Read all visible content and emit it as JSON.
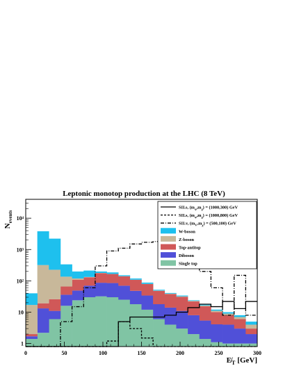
{
  "chart_data": {
    "type": "histogram",
    "title": "Leptonic monotop production at the LHC (8 TeV)",
    "ylabel_main": "N",
    "ylabel_sub": "events",
    "xlabel": "E̸T [GeV]",
    "xlabel_parts": {
      "sym": "E̸",
      "sub": "T",
      "unit": "[GeV]"
    },
    "xlim": [
      0,
      300
    ],
    "ylim": [
      0.8,
      40000
    ],
    "y_scale": "log",
    "x_ticks": [
      0,
      50,
      100,
      150,
      200,
      250,
      300
    ],
    "x_tick_labels": [
      "0",
      "50",
      "100",
      "150",
      "200",
      "250",
      "300"
    ],
    "y_ticks": [
      1,
      10,
      100,
      1000,
      10000
    ],
    "y_tick_labels": [
      "1",
      "10",
      "10²",
      "10³",
      "10⁴"
    ],
    "bin_edges": [
      0,
      15,
      30,
      45,
      60,
      75,
      90,
      105,
      120,
      135,
      150,
      165,
      180,
      195,
      210,
      225,
      240,
      255,
      270,
      285,
      300
    ],
    "stack_order_bottom_to_top": [
      "Single top",
      "Diboson",
      "Top-antitop",
      "Z-boson",
      "W-boson"
    ],
    "stack_series": [
      {
        "name": "Single top",
        "color": "#80C4A4",
        "values": [
          1.4,
          2.2,
          6,
          16,
          24,
          30,
          32,
          30,
          25,
          18,
          12,
          6,
          4,
          3,
          2,
          1.4,
          1.1,
          1,
          1,
          1
        ]
      },
      {
        "name": "Diboson",
        "color": "#5050D8",
        "values": [
          0.3,
          11,
          5,
          20,
          25,
          40,
          55,
          55,
          45,
          30,
          22,
          12,
          10,
          8,
          6,
          4,
          3,
          3,
          2,
          1
        ]
      },
      {
        "name": "Top-antitop",
        "color": "#D05858",
        "values": [
          0.3,
          6,
          15,
          30,
          60,
          60,
          90,
          80,
          70,
          60,
          45,
          30,
          24,
          20,
          14,
          10,
          6,
          4,
          3,
          1
        ]
      },
      {
        "name": "Z-boson",
        "color": "#C8B89A",
        "values": [
          15,
          300,
          200,
          70,
          10,
          3,
          2,
          1,
          1,
          1,
          1,
          1,
          1,
          1,
          1,
          1,
          1,
          1,
          1,
          1
        ]
      },
      {
        "name": "W-boson",
        "color": "#1EC0EE",
        "values": [
          23,
          3500,
          2000,
          200,
          80,
          80,
          20,
          20,
          10,
          10,
          8,
          3,
          2,
          2,
          1,
          1,
          1,
          1,
          1,
          1
        ]
      }
    ],
    "stack_totals": [
      40,
      3800,
      2300,
      350,
      200,
      200,
      190,
      180,
      150,
      120,
      90,
      55,
      40,
      35,
      25,
      18,
      12,
      10,
      7,
      3.5
    ],
    "line_series": [
      {
        "name": "SII.s, (m_φ,m_χ) = (1000,300) GeV",
        "style": "solid",
        "values": [
          0,
          0,
          0,
          0,
          0,
          0,
          0,
          0.8,
          5,
          7,
          7,
          7,
          8,
          10,
          14,
          18,
          15,
          22,
          13,
          22
        ]
      },
      {
        "name": "SII.s, (m_φ,m_χ) = (1000,800) GeV",
        "style": "dashed",
        "values": [
          0,
          0,
          0,
          0,
          0,
          0,
          0,
          1.2,
          5,
          3,
          1.5,
          0.7,
          0,
          0,
          0,
          0,
          0,
          0,
          0,
          0
        ]
      },
      {
        "name": "SII.v, (m_V,m_χ) = (500,100) GeV",
        "style": "dashdot",
        "values": [
          0,
          0,
          0,
          5,
          15,
          60,
          300,
          900,
          1100,
          1500,
          1700,
          1800,
          1900,
          1500,
          600,
          200,
          60,
          8,
          150,
          8
        ]
      }
    ],
    "legend": {
      "placement": "top-right",
      "lines": [
        {
          "label": "SII.s, (m",
          "sub1": "φ",
          "mid": ",m",
          "sub2": "χ",
          "tail": ") = (1000,300) GeV",
          "style": "solid"
        },
        {
          "label": "SII.s, (m",
          "sub1": "φ",
          "mid": ",m",
          "sub2": "χ",
          "tail": ") = (1000,800) GeV",
          "style": "dashed"
        },
        {
          "label": "SII.v, (m",
          "sub1": "V",
          "mid": ",m",
          "sub2": "χ",
          "tail": ") = (500,100) GeV",
          "style": "dashdot"
        }
      ],
      "fills": [
        {
          "label": "W-boson",
          "color": "#1EC0EE"
        },
        {
          "label": "Z-boson",
          "color": "#C8B89A"
        },
        {
          "label": "Top-antitop",
          "color": "#D05858"
        },
        {
          "label": "Diboson",
          "color": "#5050D8"
        },
        {
          "label": "Single top",
          "color": "#80C4A4"
        }
      ]
    }
  }
}
